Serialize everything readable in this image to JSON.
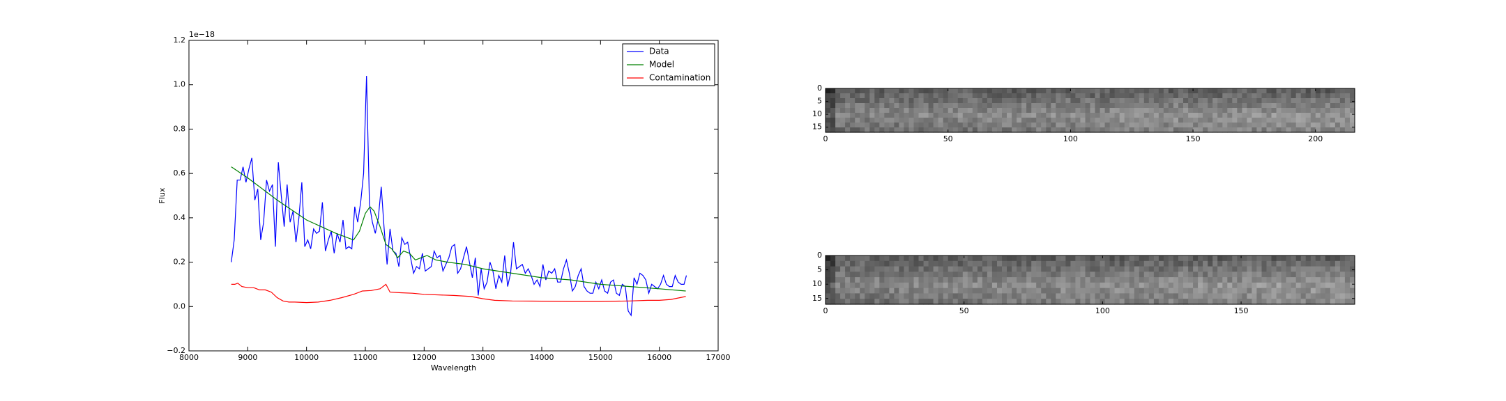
{
  "chart_data": [
    {
      "type": "line",
      "xlabel": "Wavelength",
      "ylabel": "Flux",
      "offset_text": "1e−18",
      "xlim": [
        8000,
        17000
      ],
      "xticks": [
        8000,
        9000,
        10000,
        11000,
        12000,
        13000,
        14000,
        15000,
        16000,
        17000
      ],
      "ylim": [
        -0.2,
        1.2
      ],
      "yticks": [
        {
          "value": -0.2,
          "label": "−0.2"
        },
        {
          "value": 0,
          "label": "0.0"
        },
        0.2,
        0.4,
        0.6,
        0.8,
        {
          "value": 1,
          "label": "1.0"
        },
        1.2
      ],
      "legend": "upper right",
      "series": [
        {
          "name": "Data",
          "color": "#0000ff",
          "x": [
            8720,
            8770,
            8820,
            8870,
            8920,
            8970,
            9020,
            9070,
            9120,
            9170,
            9220,
            9270,
            9320,
            9370,
            9420,
            9470,
            9520,
            9570,
            9620,
            9670,
            9720,
            9770,
            9820,
            9870,
            9920,
            9970,
            10020,
            10070,
            10120,
            10170,
            10220,
            10270,
            10320,
            10370,
            10420,
            10470,
            10520,
            10570,
            10620,
            10670,
            10720,
            10770,
            10820,
            10870,
            10920,
            10970,
            11020,
            11070,
            11120,
            11170,
            11220,
            11270,
            11320,
            11370,
            11420,
            11470,
            11520,
            11570,
            11620,
            11670,
            11720,
            11770,
            11820,
            11870,
            11920,
            11970,
            12020,
            12070,
            12120,
            12170,
            12220,
            12270,
            12320,
            12370,
            12420,
            12470,
            12520,
            12570,
            12620,
            12670,
            12720,
            12770,
            12820,
            12870,
            12920,
            12970,
            13020,
            13070,
            13120,
            13170,
            13220,
            13270,
            13320,
            13370,
            13420,
            13470,
            13520,
            13570,
            13620,
            13670,
            13720,
            13770,
            13820,
            13870,
            13920,
            13970,
            14020,
            14070,
            14120,
            14170,
            14220,
            14270,
            14320,
            14370,
            14420,
            14470,
            14520,
            14570,
            14620,
            14670,
            14720,
            14770,
            14820,
            14870,
            14920,
            14970,
            15020,
            15070,
            15120,
            15170,
            15220,
            15270,
            15320,
            15370,
            15420,
            15470,
            15520,
            15570,
            15620,
            15670,
            15720,
            15770,
            15820,
            15870,
            15920,
            15970,
            16020,
            16070,
            16120,
            16170,
            16220,
            16270,
            16320,
            16370,
            16420,
            16460
          ],
          "values": [
            0.2,
            0.3,
            0.57,
            0.57,
            0.63,
            0.56,
            0.62,
            0.67,
            0.48,
            0.53,
            0.3,
            0.38,
            0.57,
            0.52,
            0.55,
            0.27,
            0.65,
            0.5,
            0.36,
            0.55,
            0.38,
            0.43,
            0.29,
            0.4,
            0.56,
            0.27,
            0.3,
            0.26,
            0.35,
            0.33,
            0.34,
            0.47,
            0.25,
            0.3,
            0.34,
            0.24,
            0.33,
            0.29,
            0.39,
            0.26,
            0.27,
            0.26,
            0.45,
            0.38,
            0.47,
            0.6,
            1.04,
            0.46,
            0.38,
            0.33,
            0.4,
            0.54,
            0.35,
            0.19,
            0.35,
            0.25,
            0.24,
            0.18,
            0.31,
            0.28,
            0.29,
            0.22,
            0.15,
            0.18,
            0.17,
            0.24,
            0.16,
            0.17,
            0.18,
            0.25,
            0.22,
            0.23,
            0.16,
            0.19,
            0.22,
            0.27,
            0.28,
            0.15,
            0.17,
            0.22,
            0.27,
            0.2,
            0.13,
            0.22,
            0.05,
            0.17,
            0.08,
            0.11,
            0.2,
            0.16,
            0.08,
            0.14,
            0.11,
            0.23,
            0.09,
            0.15,
            0.29,
            0.17,
            0.18,
            0.19,
            0.15,
            0.17,
            0.14,
            0.1,
            0.12,
            0.09,
            0.19,
            0.12,
            0.16,
            0.15,
            0.17,
            0.11,
            0.11,
            0.17,
            0.21,
            0.15,
            0.07,
            0.09,
            0.14,
            0.17,
            0.09,
            0.07,
            0.06,
            0.06,
            0.11,
            0.08,
            0.12,
            0.07,
            0.06,
            0.11,
            0.12,
            0.06,
            0.05,
            0.1,
            0.09,
            -0.02,
            -0.04,
            0.13,
            0.1,
            0.15,
            0.14,
            0.12,
            0.06,
            0.1,
            0.09,
            0.08,
            0.1,
            0.14,
            0.1,
            0.09,
            0.09,
            0.14,
            0.11,
            0.1,
            0.1,
            0.14
          ]
        },
        {
          "name": "Model",
          "color": "#008000",
          "x": [
            8720,
            9000,
            9500,
            10000,
            10500,
            10800,
            10900,
            11000,
            11080,
            11150,
            11250,
            11350,
            11450,
            11550,
            11650,
            11750,
            11850,
            11950,
            12050,
            12200,
            12400,
            12700,
            13000,
            13500,
            14000,
            14500,
            15000,
            15500,
            16000,
            16450
          ],
          "values": [
            0.63,
            0.58,
            0.48,
            0.39,
            0.33,
            0.3,
            0.34,
            0.42,
            0.45,
            0.43,
            0.36,
            0.28,
            0.26,
            0.22,
            0.25,
            0.24,
            0.21,
            0.22,
            0.23,
            0.21,
            0.2,
            0.19,
            0.17,
            0.15,
            0.13,
            0.12,
            0.1,
            0.09,
            0.08,
            0.07
          ]
        },
        {
          "name": "Contamination",
          "color": "#ff0000",
          "x": [
            8720,
            8780,
            8830,
            8900,
            9000,
            9100,
            9200,
            9300,
            9400,
            9500,
            9600,
            9700,
            9800,
            10000,
            10200,
            10400,
            10600,
            10800,
            10950,
            11100,
            11250,
            11350,
            11420,
            11600,
            11800,
            12000,
            12500,
            12800,
            13000,
            13200,
            13500,
            14000,
            14500,
            15000,
            15500,
            15800,
            16000,
            16200,
            16450
          ],
          "values": [
            0.1,
            0.1,
            0.105,
            0.09,
            0.085,
            0.085,
            0.075,
            0.075,
            0.065,
            0.04,
            0.025,
            0.02,
            0.02,
            0.018,
            0.02,
            0.028,
            0.04,
            0.055,
            0.07,
            0.072,
            0.08,
            0.1,
            0.065,
            0.062,
            0.06,
            0.055,
            0.05,
            0.045,
            0.035,
            0.028,
            0.025,
            0.024,
            0.023,
            0.023,
            0.025,
            0.028,
            0.028,
            0.032,
            0.045
          ]
        }
      ]
    },
    {
      "type": "image",
      "xlim": [
        0,
        216
      ],
      "ylim": [
        17,
        0
      ],
      "xticks": [
        0,
        50,
        100,
        150,
        200
      ],
      "yticks": [
        0,
        5,
        10,
        15
      ]
    },
    {
      "type": "image",
      "xlim": [
        0,
        191
      ],
      "ylim": [
        17,
        0
      ],
      "xticks": [
        0,
        50,
        100,
        150
      ],
      "yticks": [
        0,
        5,
        10,
        15
      ]
    }
  ]
}
